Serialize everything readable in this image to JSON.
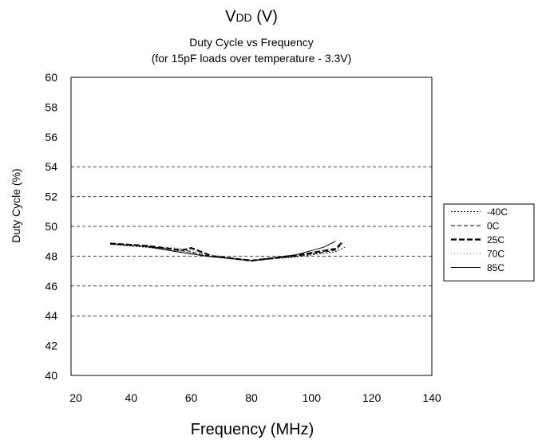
{
  "header": {
    "vdd_prefix": "V",
    "vdd_sub": "DD",
    "vdd_suffix": " (V)"
  },
  "chart_data": {
    "type": "line",
    "title": "Duty Cycle vs Frequency",
    "subtitle": "(for 15pF loads over temperature - 3.3V)",
    "xlabel": "Frequency (MHz)",
    "ylabel": "Duty Cycle (%)",
    "xlim": [
      20,
      140
    ],
    "ylim": [
      40,
      60
    ],
    "xticks": [
      20,
      40,
      60,
      80,
      100,
      120,
      140
    ],
    "yticks": [
      40,
      42,
      44,
      46,
      48,
      50,
      52,
      54,
      56,
      58,
      60
    ],
    "gridlines_y": [
      44,
      46,
      48,
      50,
      52,
      54
    ],
    "grid": "dashed horizontal at selected levels",
    "legend_position": "right",
    "series": [
      {
        "name": "-40C",
        "style": "dotted",
        "points": [
          [
            33,
            48.8
          ],
          [
            45,
            48.6
          ],
          [
            58,
            48.3
          ],
          [
            65,
            48.0
          ],
          [
            80,
            47.7
          ],
          [
            95,
            47.95
          ],
          [
            108,
            48.3
          ],
          [
            111,
            48.6
          ]
        ]
      },
      {
        "name": "0C",
        "style": "dashed",
        "points": [
          [
            33,
            48.8
          ],
          [
            45,
            48.65
          ],
          [
            58,
            48.4
          ],
          [
            65,
            48.05
          ],
          [
            80,
            47.7
          ],
          [
            95,
            48.0
          ],
          [
            108,
            48.4
          ],
          [
            110,
            48.8
          ]
        ]
      },
      {
        "name": "25C",
        "style": "thick-dashed",
        "points": [
          [
            33,
            48.85
          ],
          [
            45,
            48.7
          ],
          [
            57,
            48.4
          ],
          [
            60,
            48.55
          ],
          [
            67,
            48.0
          ],
          [
            80,
            47.7
          ],
          [
            95,
            48.05
          ],
          [
            108,
            48.5
          ],
          [
            110,
            48.9
          ]
        ]
      },
      {
        "name": "70C",
        "style": "fine-dotted",
        "points": [
          [
            33,
            48.85
          ],
          [
            45,
            48.7
          ],
          [
            59,
            48.5
          ],
          [
            63,
            48.2
          ],
          [
            80,
            47.75
          ],
          [
            95,
            48.1
          ],
          [
            108,
            48.55
          ],
          [
            111,
            49.0
          ]
        ]
      },
      {
        "name": "85C",
        "style": "solid",
        "points": [
          [
            33,
            48.85
          ],
          [
            45,
            48.65
          ],
          [
            55,
            48.3
          ],
          [
            65,
            48.0
          ],
          [
            80,
            47.7
          ],
          [
            95,
            48.1
          ],
          [
            104,
            48.6
          ],
          [
            108,
            49.0
          ]
        ]
      }
    ]
  }
}
